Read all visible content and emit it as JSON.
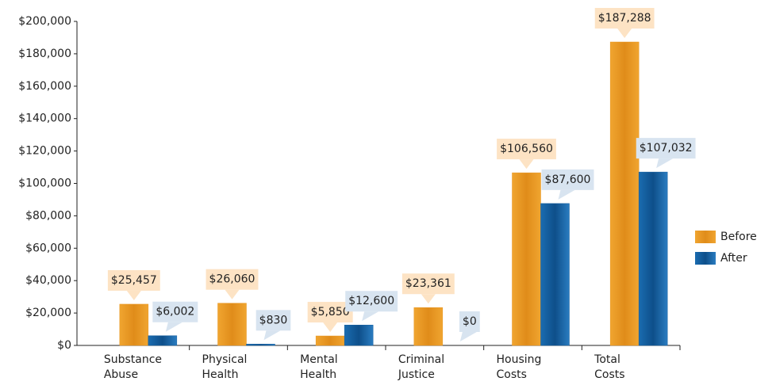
{
  "chart_data": {
    "type": "bar",
    "categories": [
      "Substance Abuse",
      "Physical Health",
      "Mental Health",
      "Criminal Justice",
      "Housing Costs",
      "Total Costs"
    ],
    "series": [
      {
        "name": "Before",
        "color": "#e8941e",
        "values": [
          25457,
          26060,
          5850,
          23361,
          106560,
          187288
        ],
        "value_labels": [
          "$25,457",
          "$26,060",
          "$5,850",
          "$23,361",
          "$106,560",
          "$187,288"
        ]
      },
      {
        "name": "After",
        "color": "#145e9e",
        "values": [
          6002,
          830,
          12600,
          0,
          87600,
          107032
        ],
        "value_labels": [
          "$6,002",
          "$830",
          "$12,600",
          "$0",
          "$87,600",
          "$107,032"
        ]
      }
    ],
    "ylim": [
      0,
      200000
    ],
    "yticks": [
      {
        "value": 0,
        "label": "$0"
      },
      {
        "value": 20000,
        "label": "$20,000"
      },
      {
        "value": 40000,
        "label": "$40,000"
      },
      {
        "value": 60000,
        "label": "$60,000"
      },
      {
        "value": 80000,
        "label": "$80,000"
      },
      {
        "value": 100000,
        "label": "$100,000"
      },
      {
        "value": 120000,
        "label": "$120,000"
      },
      {
        "value": 140000,
        "label": "$140,000"
      },
      {
        "value": 160000,
        "label": "$160,000"
      },
      {
        "value": 180000,
        "label": "$180,000"
      },
      {
        "value": 200000,
        "label": "$200,000"
      }
    ],
    "legend": "right"
  }
}
